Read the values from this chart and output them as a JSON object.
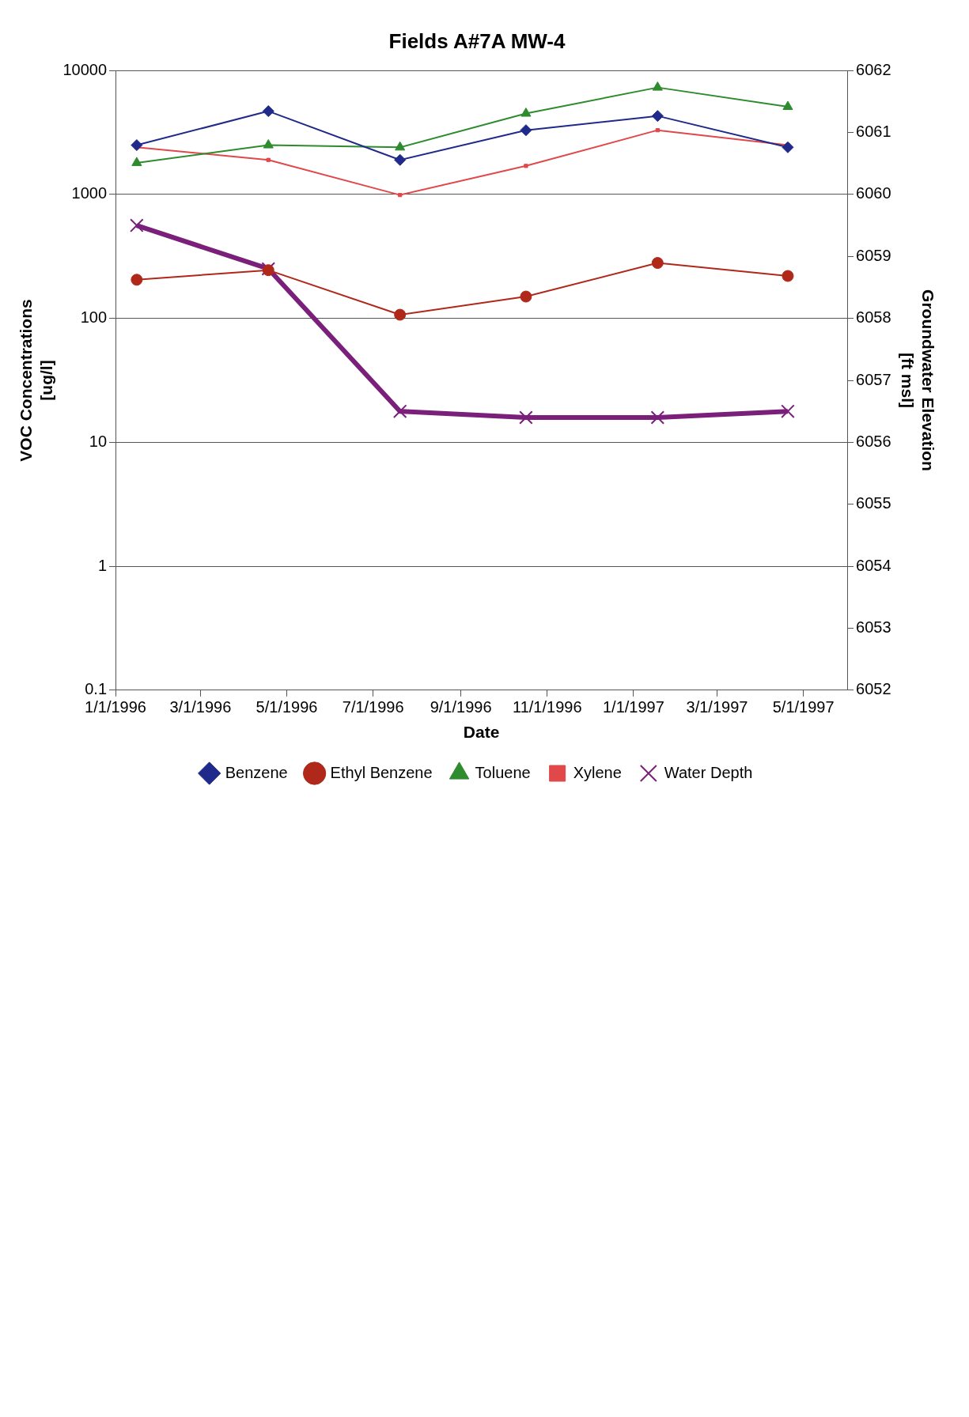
{
  "chart_data": {
    "type": "line",
    "title": "Fields A#7A MW-4",
    "xlabel": "Date",
    "ylabel": "VOC Concentrations\n[ug/l]",
    "y2label": "Groundwater Elevation\n[ft msl]",
    "x": [
      "1996-01-16",
      "1996-04-18",
      "1996-07-20",
      "1996-10-17",
      "1997-01-18",
      "1997-04-20"
    ],
    "series": [
      {
        "name": "Benzene",
        "color": "#1f2a8a",
        "marker": "diamond",
        "values": [
          2500,
          4700,
          1900,
          3300,
          4300,
          2400
        ]
      },
      {
        "name": "Ethyl Benzene",
        "color": "#b0281a",
        "marker": "circle",
        "values": [
          205,
          245,
          107,
          150,
          280,
          220
        ]
      },
      {
        "name": "Toluene",
        "color": "#2e8b2e",
        "marker": "triangle",
        "values": [
          1800,
          2500,
          2400,
          4500,
          7300,
          5100
        ]
      },
      {
        "name": "Xylene",
        "color": "#e0484a",
        "marker": "square",
        "values": [
          2400,
          1900,
          990,
          1700,
          3300,
          2500
        ]
      },
      {
        "name": "Water Depth",
        "color": "#7a1f7a",
        "marker": "cross",
        "axis": "y2",
        "values": [
          6059.5,
          6058.8,
          6056.5,
          6056.4,
          6056.4,
          6056.5
        ]
      }
    ],
    "log": "y",
    "ylim": [
      0.1,
      10000
    ],
    "yticks": [
      0.1,
      1,
      10,
      100,
      1000,
      10000
    ],
    "y2lim": [
      6052,
      6062
    ],
    "y2ticks": [
      6052,
      6053,
      6054,
      6055,
      6056,
      6057,
      6058,
      6059,
      6060,
      6061,
      6062
    ],
    "xlim": [
      "1996-01-01",
      "1997-06-01"
    ],
    "xticks": [
      {
        "value": "1996-01-01",
        "label": "1/1/1996"
      },
      {
        "value": "1996-03-01",
        "label": "3/1/1996"
      },
      {
        "value": "1996-05-01",
        "label": "5/1/1996"
      },
      {
        "value": "1996-07-01",
        "label": "7/1/1996"
      },
      {
        "value": "1996-09-01",
        "label": "9/1/1996"
      },
      {
        "value": "1996-11-01",
        "label": "11/1/1996"
      },
      {
        "value": "1997-01-01",
        "label": "1/1/1997"
      },
      {
        "value": "1997-03-01",
        "label": "3/1/1997"
      },
      {
        "value": "1997-05-01",
        "label": "5/1/1997"
      }
    ],
    "grid": "y",
    "legend": "bottom",
    "line_style": "solid"
  }
}
